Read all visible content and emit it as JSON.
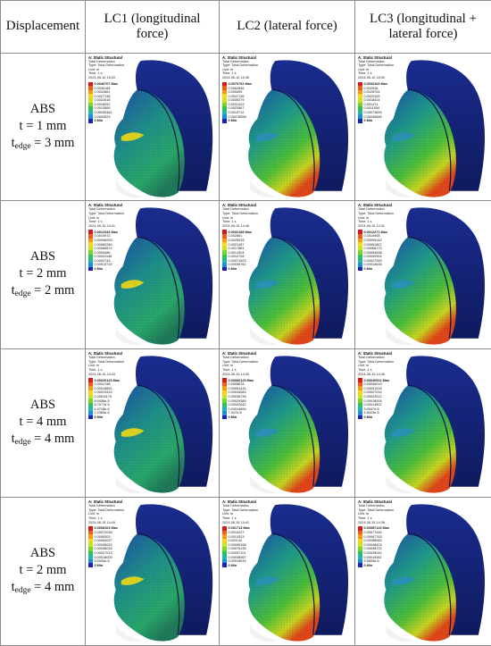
{
  "header": {
    "col0": "Displacement",
    "col1": "LC1 (longitudinal force)",
    "col2": "LC2 (lateral force)",
    "col3": "LC3 (longitudinal + lateral force)"
  },
  "colors": {
    "scale": [
      "#d7191c",
      "#f05a1a",
      "#f79a12",
      "#f7d716",
      "#c8e620",
      "#7ad42b",
      "#2cc255",
      "#20b8a8",
      "#1d8fd6",
      "#1c4fd1",
      "#1a22b8"
    ],
    "helmet": "#14206e",
    "face": "#2a7a5c"
  },
  "rows": [
    {
      "label": {
        "material": "ABS",
        "t": "t = 1 mm",
        "tedge_prefix": "t",
        "tedge_sub": "edge",
        "tedge_val": " = 3 mm"
      },
      "cells": [
        {
          "title": "A: Static Structural",
          "lines": [
            "Total Deformation",
            "Type: Total Deformation",
            "Unit: m",
            "Time: 1 s",
            "2024-05-10 15:29"
          ],
          "max": "0.0040707 Max",
          "values": [
            "0.0036184",
            "0.0031661",
            "0.0027138",
            "0.0022615",
            "0.0018092",
            "0.0013569",
            "0.00090461",
            "0.0004523"
          ],
          "min": "0 Min"
        },
        {
          "title": "A: Static Structural",
          "lines": [
            "Total Deformation",
            "Type: Total Deformation",
            "Unit: m",
            "Time: 1 s",
            "2024-05-10 15:35"
          ],
          "max": "0.0070702 Max",
          "values": [
            "0.0062846",
            "0.005499",
            "0.0047135",
            "0.0039279",
            "0.0031423",
            "0.0023567",
            "0.0015712",
            "0.00078558"
          ],
          "min": "0 Min"
        },
        {
          "title": "A: Static Structural",
          "lines": [
            "Total Deformation",
            "Type: Total Deformation",
            "Unit: m",
            "Time: 1 s",
            "2024-05-10 15:39"
          ],
          "max": "0.0033163 Max",
          "values": [
            "0.002948",
            "0.0025794",
            "0.0022109",
            "0.0018424",
            "0.001474",
            "0.0011054",
            "0.00073695",
            "0.00036848"
          ],
          "min": "0 Min"
        }
      ]
    },
    {
      "label": {
        "material": "ABS",
        "t": "t = 2 mm",
        "tedge_prefix": "t",
        "tedge_sub": "edge",
        "tedge_val": " = 2 mm"
      },
      "cells": [
        {
          "title": "A: Static Structural",
          "lines": [
            "Total Deformation",
            "Type: Total Deformation",
            "Unit: m",
            "Time: 1 s",
            "2024-06-15 14:41"
          ],
          "max": "0.0012343 Max",
          "values": [
            "0.0010972",
            "0.00096003",
            "0.00082289",
            "0.00068574",
            "0.0005486",
            "0.00041145",
            "0.0002743",
            "0.00013715"
          ],
          "min": "0 Min"
        },
        {
          "title": "A: Static Structural",
          "lines": [
            "Total Deformation",
            "Type: Total Deformation",
            "Unit: m",
            "Time: 1 s",
            "2024-06-15 14:46"
          ],
          "max": "0.0032185 Max",
          "values": [
            "0.002861",
            "0.0025033",
            "0.0021457",
            "0.0017881",
            "0.0014304",
            "0.0010728",
            "0.00071523",
            "0.00035761"
          ],
          "min": "0 Min"
        },
        {
          "title": "A: Static Structural",
          "lines": [
            "Total Deformation",
            "Type: Total Deformation",
            "Unit: m",
            "Time: 1 s",
            "2024-06-15 14:31"
          ],
          "max": "0.0012271 Max",
          "values": [
            "0.0010908",
            "0.00095442",
            "0.00081807",
            "0.00068173",
            "0.00054538",
            "0.00040904",
            "0.00027269",
            "0.00013635"
          ],
          "min": "0 Min"
        }
      ]
    },
    {
      "label": {
        "material": "ABS",
        "t": "t = 4 mm",
        "tedge_prefix": "t",
        "tedge_sub": "edge",
        "tedge_val": " = 4 mm"
      },
      "cells": [
        {
          "title": "A: Static Structural",
          "lines": [
            "Total Deformation",
            "Type: Total Deformation",
            "Unit: m",
            "Time: 1 s",
            "2024-06-15 14:43"
          ],
          "max": "0.00020123 Max",
          "values": [
            "0.0001788",
            "0.00015651",
            "0.00013415",
            "0.00011179",
            "8.9436e-5",
            "6.7077e-5",
            "4.4718e-5",
            "2.2359e-5"
          ],
          "min": "0 Min"
        },
        {
          "title": "A: Static Structural",
          "lines": [
            "Total Deformation",
            "Type: Total Deformation",
            "Unit: m",
            "Time: 1 s",
            "2024-06-15 14:43"
          ],
          "max": "0.00066125 Max",
          "values": [
            "0.0005878",
            "0.00051431",
            "0.00044083",
            "0.00036736",
            "0.00029389",
            "0.00022042",
            "0.00014694",
            "7.347e-5"
          ],
          "min": "0 Min"
        },
        {
          "title": "A: Static Structural",
          "lines": [
            "Total Deformation",
            "Type: Total Deformation",
            "Unit: m",
            "Time: 1 s",
            "2024-06-15 14:46"
          ],
          "max": "0.00040521 Max",
          "values": [
            "0.00036019",
            "0.00031516",
            "0.00027014",
            "0.00022512",
            "0.00018009",
            "0.00013507",
            "9.0047e-5",
            "4.5023e-5"
          ],
          "min": "0 Min"
        }
      ]
    },
    {
      "label": {
        "material": "ABS",
        "t": "t = 2 mm",
        "tedge_prefix": "t",
        "tedge_sub": "edge",
        "tedge_val": " = 4 mm"
      },
      "cells": [
        {
          "title": "A: Static Structural",
          "lines": [
            "Total Deformation",
            "Type: Total Deformation",
            "Unit: m",
            "Time: 1 s",
            "2024-06-15 14:40"
          ],
          "max": "0.0008104 Max",
          "values": [
            "0.00072036",
            "0.0006303",
            "0.00054027",
            "0.00045022",
            "0.00036018",
            "0.00027013",
            "0.00018009",
            "9.0044e-5"
          ],
          "min": "0 Min"
        },
        {
          "title": "A: Static Structural",
          "lines": [
            "Total Deformation",
            "Type: Total Deformation",
            "Unit: m",
            "Time: 1 s",
            "2024-06-15 14:41"
          ],
          "max": "0.001713 Max",
          "values": [
            "0.0015227",
            "0.0013323",
            "0.001142",
            "0.00095168",
            "0.00076135",
            "0.00057101",
            "0.00038067",
            "0.00019034"
          ],
          "min": "0 Min"
        },
        {
          "title": "A: Static Structural",
          "lines": [
            "Total Deformation",
            "Type: Total Deformation",
            "Unit: m",
            "Time: 1 s",
            "2024-06-15 14:36"
          ],
          "max": "0.00087124 Max",
          "values": [
            "0.00077444",
            "0.00067763",
            "0.00058083",
            "0.00048403",
            "0.00038722",
            "0.00029042",
            "0.00019361",
            "9.6805e-5"
          ],
          "min": "0 Min"
        }
      ]
    }
  ]
}
